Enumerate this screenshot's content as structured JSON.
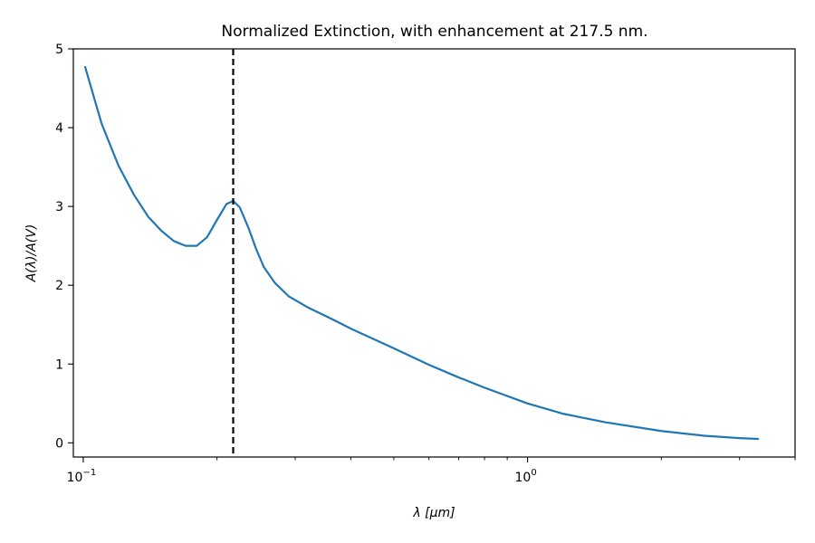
{
  "chart_data": {
    "type": "line",
    "title": "Normalized Extinction, with enhancement at 217.5 nm.",
    "xlabel": "λ [μm]",
    "ylabel": "A(λ)/A(V)",
    "xscale": "log",
    "xlim": [
      0.095,
      4.0
    ],
    "ylim": [
      -0.18,
      5.0
    ],
    "x_major_ticks": [
      {
        "value": 0.1,
        "base": "10",
        "exp": "−1"
      },
      {
        "value": 1.0,
        "base": "10",
        "exp": "0"
      }
    ],
    "x_minor_ticks": [
      0.2,
      0.3,
      0.4,
      0.5,
      0.6,
      0.7,
      0.8,
      0.9,
      2,
      3,
      4
    ],
    "y_ticks": [
      0,
      1,
      2,
      3,
      4,
      5
    ],
    "vertical_line": {
      "x": 0.2175,
      "style": "dashed",
      "color": "#000000"
    },
    "series": [
      {
        "color": "#1f77b4",
        "points": [
          [
            0.101,
            4.77
          ],
          [
            0.11,
            4.05
          ],
          [
            0.12,
            3.52
          ],
          [
            0.13,
            3.15
          ],
          [
            0.14,
            2.87
          ],
          [
            0.15,
            2.69
          ],
          [
            0.16,
            2.56
          ],
          [
            0.17,
            2.5
          ],
          [
            0.18,
            2.5
          ],
          [
            0.19,
            2.61
          ],
          [
            0.2,
            2.83
          ],
          [
            0.21,
            3.03
          ],
          [
            0.2175,
            3.07
          ],
          [
            0.225,
            2.99
          ],
          [
            0.235,
            2.74
          ],
          [
            0.245,
            2.46
          ],
          [
            0.255,
            2.23
          ],
          [
            0.27,
            2.03
          ],
          [
            0.29,
            1.86
          ],
          [
            0.32,
            1.72
          ],
          [
            0.36,
            1.58
          ],
          [
            0.4,
            1.45
          ],
          [
            0.5,
            1.2
          ],
          [
            0.6,
            0.99
          ],
          [
            0.7,
            0.83
          ],
          [
            0.8,
            0.7
          ],
          [
            1.0,
            0.5
          ],
          [
            1.2,
            0.37
          ],
          [
            1.5,
            0.26
          ],
          [
            2.0,
            0.15
          ],
          [
            2.5,
            0.09
          ],
          [
            3.0,
            0.06
          ],
          [
            3.3,
            0.05
          ]
        ]
      }
    ]
  }
}
